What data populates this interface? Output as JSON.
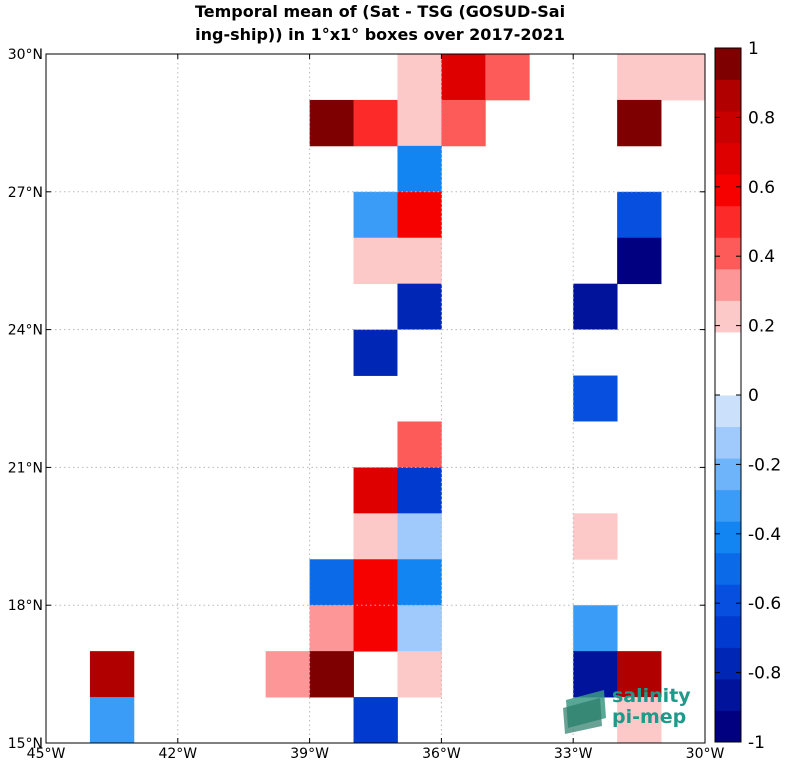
{
  "chart_data": {
    "type": "heatmap",
    "title": "Temporal mean of (Sat - TSG (GOSUD-Sailing-ship)) in 1°x1° boxes over 2017-2021",
    "title_lines": [
      "Temporal mean of (Sat - TSG (GOSUD-Sai",
      "ing-ship)) in 1°x1° boxes over 2017-2021"
    ],
    "xlim": [
      -45,
      -30
    ],
    "ylim": [
      15,
      30
    ],
    "x_ticks": [
      -45,
      -42,
      -39,
      -36,
      -33,
      -30
    ],
    "x_tick_labels": [
      "45°W",
      "42°W",
      "39°W",
      "36°W",
      "33°W",
      "30°W"
    ],
    "y_ticks": [
      15,
      18,
      21,
      24,
      27,
      30
    ],
    "y_tick_labels": [
      "15°N",
      "18°N",
      "21°N",
      "24°N",
      "27°N",
      "30°N"
    ],
    "grid": true,
    "colorbar": {
      "vmin": -1,
      "vmax": 1,
      "ticks": [
        -1,
        -0.8,
        -0.6,
        -0.4,
        -0.2,
        0,
        0.2,
        0.4,
        0.6,
        0.8,
        1
      ],
      "tick_labels": [
        "-1",
        "-0.8",
        "-0.6",
        "-0.4",
        "-0.2",
        "0",
        "0.2",
        "0.4",
        "0.6",
        "0.8",
        "1"
      ],
      "colors": [
        "#000080",
        "#00139a",
        "#0026b5",
        "#003acf",
        "#064fdf",
        "#0a6ae8",
        "#1285f2",
        "#3b9cf8",
        "#6eb4fa",
        "#9fcafb",
        "#cae0fb",
        "#ffffff",
        "#ffffff",
        "#fdc8c8",
        "#fd9696",
        "#fd5a5a",
        "#fd2a2a",
        "#f70000",
        "#de0000",
        "#c80000",
        "#b00000",
        "#7f0000"
      ]
    },
    "cells": [
      {
        "lon": -38,
        "lat": 29,
        "value": 0.15
      },
      {
        "lon": -37,
        "lat": 29,
        "value": 0.25
      },
      {
        "lon": -36,
        "lat": 29,
        "value": 0.7
      },
      {
        "lon": -35,
        "lat": 29,
        "value": 0.45
      },
      {
        "lon": -32,
        "lat": 29,
        "value": 0.25
      },
      {
        "lon": -31,
        "lat": 29,
        "value": 0.25
      },
      {
        "lon": -39,
        "lat": 28,
        "value": 0.95
      },
      {
        "lon": -38,
        "lat": 28,
        "value": 0.5
      },
      {
        "lon": -37,
        "lat": 28,
        "value": 0.25
      },
      {
        "lon": -36,
        "lat": 28,
        "value": 0.45
      },
      {
        "lon": -32,
        "lat": 28,
        "value": 0.95
      },
      {
        "lon": -37,
        "lat": 27,
        "value": -0.45
      },
      {
        "lon": -38,
        "lat": 26,
        "value": -0.35
      },
      {
        "lon": -37,
        "lat": 26,
        "value": 0.55
      },
      {
        "lon": -32,
        "lat": 26,
        "value": -0.6
      },
      {
        "lon": -38,
        "lat": 25,
        "value": 0.25
      },
      {
        "lon": -37,
        "lat": 25,
        "value": 0.25
      },
      {
        "lon": -33,
        "lat": 25,
        "value": 0.15
      },
      {
        "lon": -32,
        "lat": 25,
        "value": -0.95
      },
      {
        "lon": -37,
        "lat": 24,
        "value": -0.75
      },
      {
        "lon": -33,
        "lat": 24,
        "value": -0.85
      },
      {
        "lon": -38,
        "lat": 23,
        "value": -0.75
      },
      {
        "lon": -37,
        "lat": 23,
        "value": 0.15
      },
      {
        "lon": -33,
        "lat": 23,
        "value": 0.15
      },
      {
        "lon": -33,
        "lat": 22,
        "value": -0.6
      },
      {
        "lon": -37,
        "lat": 21,
        "value": 0.45
      },
      {
        "lon": -33,
        "lat": 21,
        "value": 0.15
      },
      {
        "lon": -38,
        "lat": 20,
        "value": 0.65
      },
      {
        "lon": -37,
        "lat": 20,
        "value": -0.65
      },
      {
        "lon": -38,
        "lat": 19,
        "value": 0.25
      },
      {
        "lon": -37,
        "lat": 19,
        "value": -0.15
      },
      {
        "lon": -33,
        "lat": 19,
        "value": 0.25
      },
      {
        "lon": -39,
        "lat": 18,
        "value": -0.5
      },
      {
        "lon": -38,
        "lat": 18,
        "value": 0.6
      },
      {
        "lon": -37,
        "lat": 18,
        "value": -0.45
      },
      {
        "lon": -39,
        "lat": 17,
        "value": 0.35
      },
      {
        "lon": -38,
        "lat": 17,
        "value": 0.6
      },
      {
        "lon": -37,
        "lat": 17,
        "value": -0.15
      },
      {
        "lon": -33,
        "lat": 17,
        "value": -0.35
      },
      {
        "lon": -44,
        "lat": 16,
        "value": 0.85
      },
      {
        "lon": -40,
        "lat": 16,
        "value": 0.35
      },
      {
        "lon": -39,
        "lat": 16,
        "value": 0.95
      },
      {
        "lon": -37,
        "lat": 16,
        "value": 0.25
      },
      {
        "lon": -33,
        "lat": 16,
        "value": -0.85
      },
      {
        "lon": -32,
        "lat": 16,
        "value": 0.85
      },
      {
        "lon": -44,
        "lat": 15,
        "value": -0.35
      },
      {
        "lon": -38,
        "lat": 15,
        "value": -0.65
      },
      {
        "lon": -32,
        "lat": 15,
        "value": 0.25
      }
    ]
  },
  "logo": {
    "line1": "salinity",
    "line2": "pi-mep"
  }
}
